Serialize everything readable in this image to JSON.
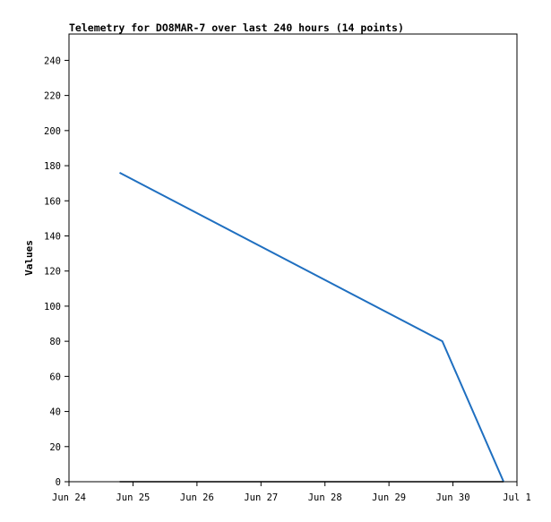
{
  "chart_data": {
    "type": "line",
    "title": "Telemetry for DO8MAR-7 over last 240 hours (14 points)",
    "xlabel": "",
    "ylabel": "Values",
    "x_ticks": [
      "Jun 24",
      "Jun 25",
      "Jun 26",
      "Jun 27",
      "Jun 28",
      "Jun 29",
      "Jun 30",
      "Jul 1"
    ],
    "xlim": [
      "Jun 24 00:00",
      "Jul 1 00:00"
    ],
    "ylim": [
      0,
      255
    ],
    "y_ticks": [
      0,
      20,
      40,
      60,
      80,
      100,
      120,
      140,
      160,
      180,
      200,
      220,
      240
    ],
    "grid": false,
    "legend": "none",
    "series": [
      {
        "color": "#1f6fc0",
        "x": [
          "Jun 24 19:00",
          "Jun 29 20:00",
          "Jun 30 19:00"
        ],
        "y": [
          176,
          80,
          0
        ]
      },
      {
        "color": "#000000",
        "x": [
          "Jun 24 19:00",
          "Jun 30 19:00"
        ],
        "y": [
          0,
          0
        ]
      }
    ]
  }
}
